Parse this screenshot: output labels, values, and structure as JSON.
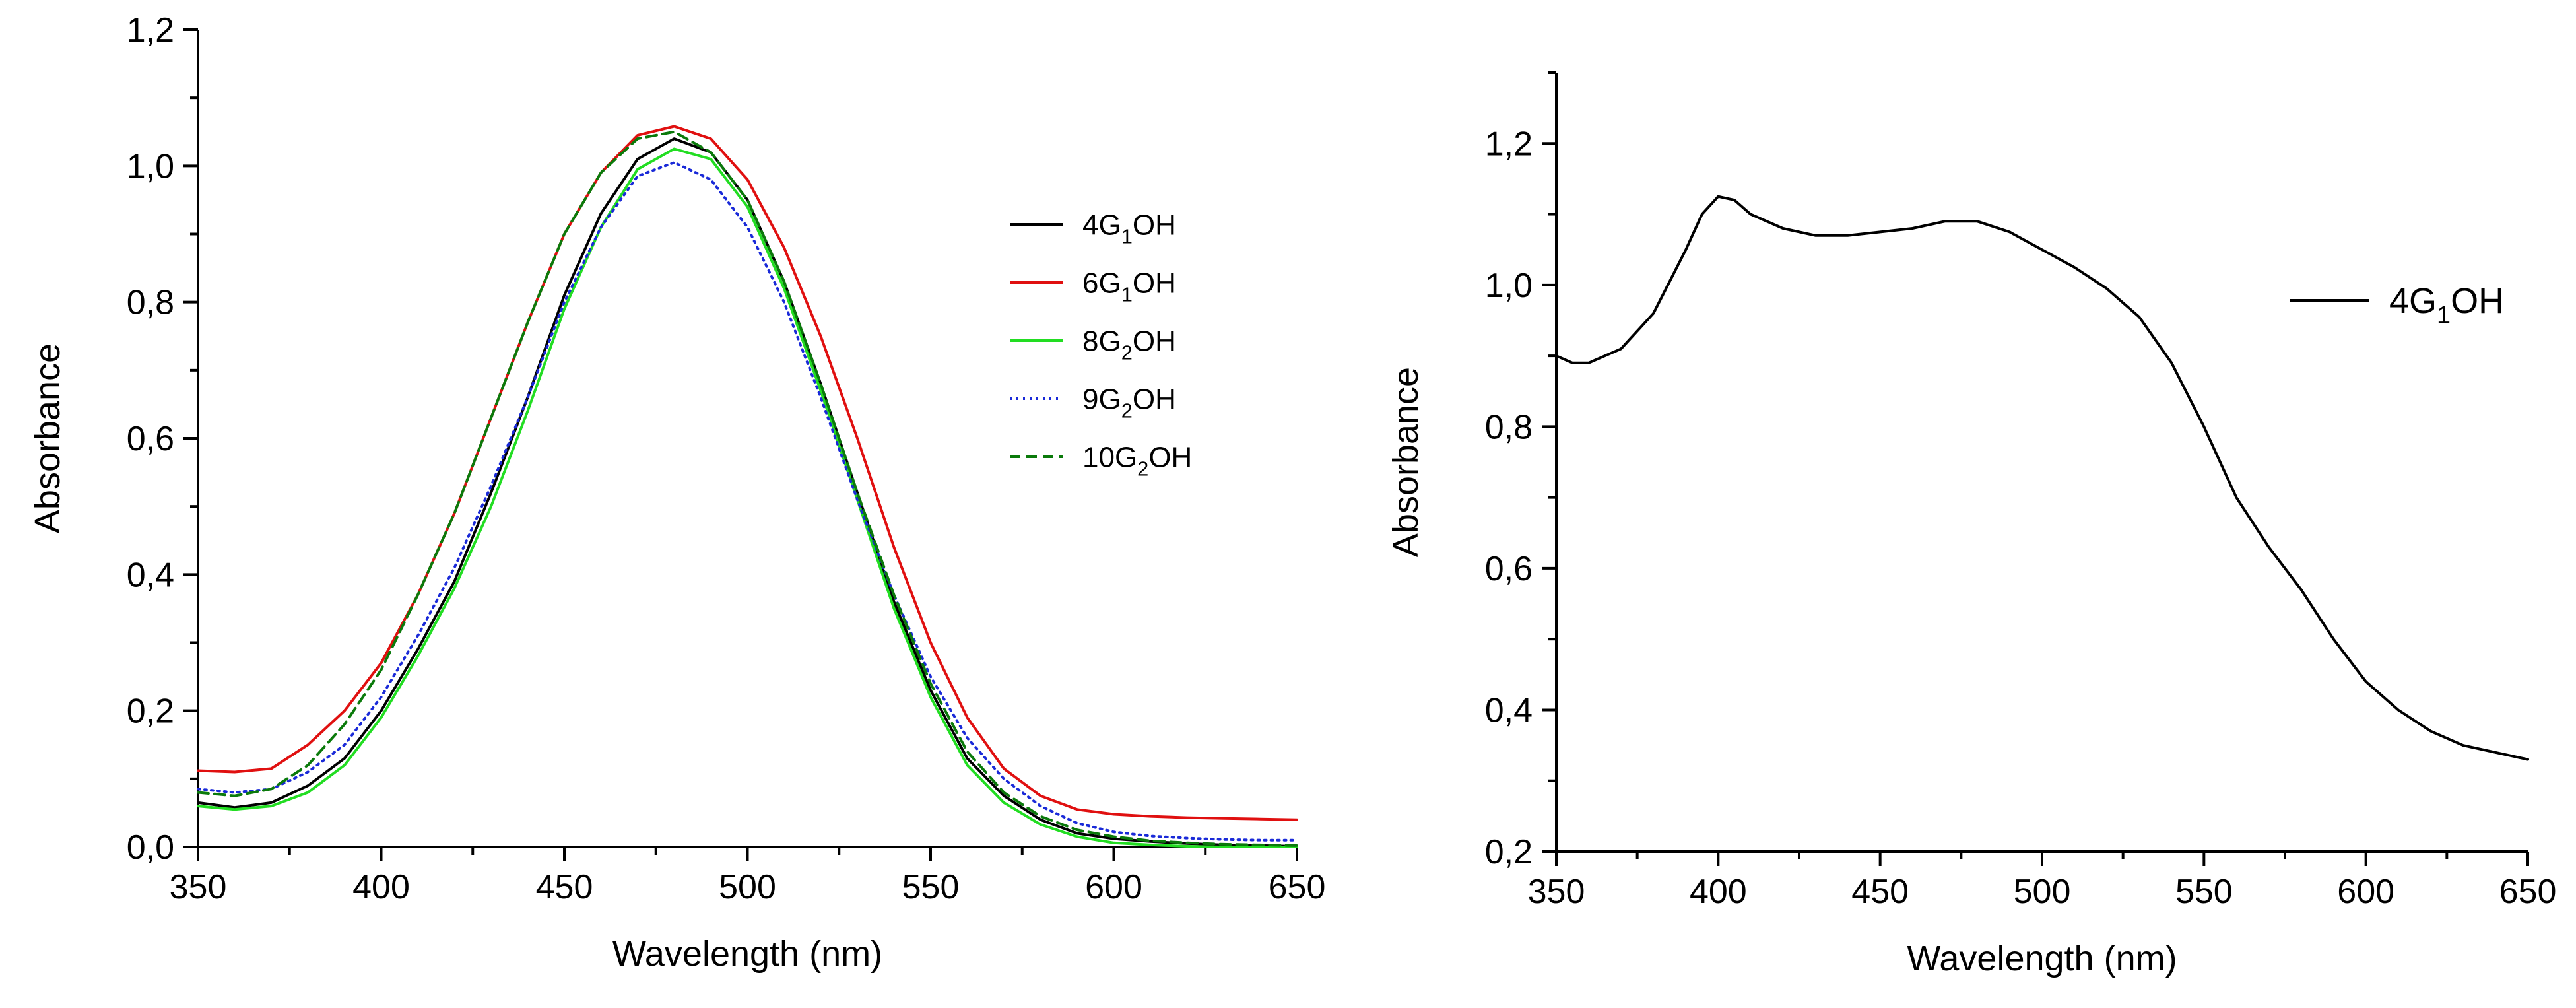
{
  "chart_data": [
    {
      "type": "line",
      "title": "",
      "xlabel": "Wavelength (nm)",
      "ylabel": "Absorbance",
      "xlim": [
        350,
        650
      ],
      "ylim": [
        0.0,
        1.2
      ],
      "xticks": [
        350,
        400,
        450,
        500,
        550,
        600,
        650
      ],
      "xtick_labels": [
        "350",
        "400",
        "450",
        "500",
        "550",
        "600",
        "650"
      ],
      "yticks": [
        0.0,
        0.2,
        0.4,
        0.6,
        0.8,
        1.0,
        1.2
      ],
      "ytick_labels": [
        "0,0",
        "0,2",
        "0,4",
        "0,6",
        "0,8",
        "1,0",
        "1,2"
      ],
      "grid": false,
      "legend_position": "upper-right",
      "series": [
        {
          "name": "4G1OH",
          "label_main": "4G",
          "label_sub": "1",
          "label_tail": "OH",
          "color": "#000000",
          "dash": "solid",
          "x": [
            350,
            360,
            370,
            380,
            390,
            400,
            410,
            420,
            430,
            440,
            450,
            460,
            470,
            480,
            490,
            500,
            510,
            520,
            530,
            540,
            550,
            560,
            570,
            580,
            590,
            600,
            610,
            620,
            630,
            640,
            650
          ],
          "y": [
            0.065,
            0.058,
            0.065,
            0.09,
            0.13,
            0.2,
            0.29,
            0.39,
            0.52,
            0.66,
            0.81,
            0.93,
            1.01,
            1.04,
            1.02,
            0.95,
            0.83,
            0.68,
            0.52,
            0.36,
            0.23,
            0.13,
            0.075,
            0.04,
            0.02,
            0.012,
            0.008,
            0.005,
            0.003,
            0.002,
            0.001
          ]
        },
        {
          "name": "6G1OH",
          "label_main": "6G",
          "label_sub": "1",
          "label_tail": "OH",
          "color": "#e01010",
          "dash": "solid",
          "x": [
            350,
            360,
            370,
            380,
            390,
            400,
            410,
            420,
            430,
            440,
            450,
            460,
            470,
            480,
            490,
            500,
            510,
            520,
            530,
            540,
            550,
            560,
            570,
            580,
            590,
            600,
            610,
            620,
            630,
            640,
            650
          ],
          "y": [
            0.112,
            0.11,
            0.115,
            0.15,
            0.2,
            0.27,
            0.37,
            0.49,
            0.63,
            0.77,
            0.9,
            0.99,
            1.045,
            1.058,
            1.04,
            0.98,
            0.88,
            0.75,
            0.6,
            0.44,
            0.3,
            0.19,
            0.115,
            0.075,
            0.055,
            0.048,
            0.045,
            0.043,
            0.042,
            0.041,
            0.04
          ]
        },
        {
          "name": "8G2OH",
          "label_main": "8G",
          "label_sub": "2",
          "label_tail": "OH",
          "color": "#22dd22",
          "dash": "solid",
          "x": [
            350,
            360,
            370,
            380,
            390,
            400,
            410,
            420,
            430,
            440,
            450,
            460,
            470,
            480,
            490,
            500,
            510,
            520,
            530,
            540,
            550,
            560,
            570,
            580,
            590,
            600,
            610,
            620,
            630,
            640,
            650
          ],
          "y": [
            0.06,
            0.055,
            0.06,
            0.08,
            0.12,
            0.19,
            0.28,
            0.38,
            0.5,
            0.64,
            0.79,
            0.91,
            0.995,
            1.025,
            1.01,
            0.94,
            0.82,
            0.67,
            0.51,
            0.35,
            0.22,
            0.12,
            0.065,
            0.033,
            0.015,
            0.006,
            0.003,
            0.001,
            0.0,
            0.0,
            0.0
          ]
        },
        {
          "name": "9G2OH",
          "label_main": "9G",
          "label_sub": "2",
          "label_tail": "OH",
          "color": "#1a2ad8",
          "dash": "dotted",
          "x": [
            350,
            360,
            370,
            380,
            390,
            400,
            410,
            420,
            430,
            440,
            450,
            460,
            470,
            480,
            490,
            500,
            510,
            520,
            530,
            540,
            550,
            560,
            570,
            580,
            590,
            600,
            610,
            620,
            630,
            640,
            650
          ],
          "y": [
            0.085,
            0.08,
            0.085,
            0.11,
            0.15,
            0.22,
            0.31,
            0.41,
            0.53,
            0.66,
            0.8,
            0.91,
            0.985,
            1.005,
            0.98,
            0.91,
            0.8,
            0.66,
            0.51,
            0.37,
            0.25,
            0.16,
            0.1,
            0.06,
            0.035,
            0.022,
            0.016,
            0.013,
            0.011,
            0.01,
            0.01
          ]
        },
        {
          "name": "10G2OH",
          "label_main": "10G",
          "label_sub": "2",
          "label_tail": "OH",
          "color": "#0b7a0b",
          "dash": "dashed",
          "x": [
            350,
            360,
            370,
            380,
            390,
            400,
            410,
            420,
            430,
            440,
            450,
            460,
            470,
            480,
            490,
            500,
            510,
            520,
            530,
            540,
            550,
            560,
            570,
            580,
            590,
            600,
            610,
            620,
            630,
            640,
            650
          ],
          "y": [
            0.08,
            0.075,
            0.085,
            0.12,
            0.18,
            0.26,
            0.37,
            0.49,
            0.63,
            0.77,
            0.9,
            0.99,
            1.04,
            1.05,
            1.02,
            0.95,
            0.83,
            0.68,
            0.52,
            0.37,
            0.24,
            0.14,
            0.08,
            0.045,
            0.025,
            0.015,
            0.009,
            0.006,
            0.004,
            0.003,
            0.002
          ]
        }
      ]
    },
    {
      "type": "line",
      "title": "",
      "xlabel": "Wavelength (nm)",
      "ylabel": "Absorbance",
      "xlim": [
        350,
        650
      ],
      "ylim": [
        0.2,
        1.3
      ],
      "xticks": [
        350,
        400,
        450,
        500,
        550,
        600,
        650
      ],
      "xtick_labels": [
        "350",
        "400",
        "450",
        "500",
        "550",
        "600",
        "650"
      ],
      "yticks": [
        0.2,
        0.4,
        0.6,
        0.8,
        1.0,
        1.2
      ],
      "ytick_labels": [
        "0,2",
        "0,4",
        "0,6",
        "0,8",
        "1,0",
        "1,2"
      ],
      "grid": false,
      "legend_position": "right",
      "series": [
        {
          "name": "4G1OH",
          "label_main": "4G",
          "label_sub": "1",
          "label_tail": "OH",
          "color": "#000000",
          "dash": "solid",
          "x": [
            350,
            355,
            360,
            370,
            380,
            390,
            395,
            400,
            405,
            410,
            420,
            430,
            440,
            450,
            460,
            470,
            480,
            490,
            500,
            510,
            520,
            530,
            540,
            550,
            560,
            570,
            580,
            590,
            600,
            610,
            620,
            630,
            640,
            650
          ],
          "y": [
            0.9,
            0.89,
            0.89,
            0.91,
            0.96,
            1.05,
            1.1,
            1.125,
            1.12,
            1.1,
            1.08,
            1.07,
            1.07,
            1.075,
            1.08,
            1.09,
            1.09,
            1.075,
            1.05,
            1.025,
            0.995,
            0.955,
            0.89,
            0.8,
            0.7,
            0.63,
            0.57,
            0.5,
            0.44,
            0.4,
            0.37,
            0.35,
            0.34,
            0.33
          ]
        }
      ]
    }
  ]
}
